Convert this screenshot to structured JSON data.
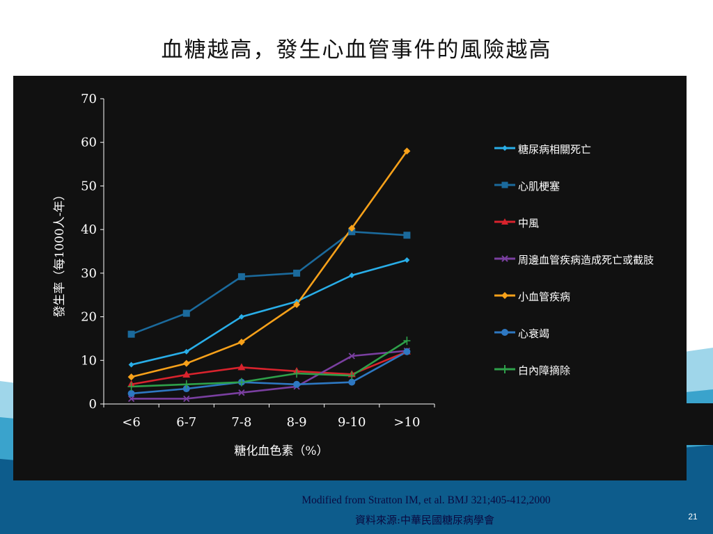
{
  "slide": {
    "title": "血糖越高，發生心血管事件的風險越高",
    "citation": "Modified from Stratton IM, et al. BMJ  321;405-412,2000",
    "source": "資料來源:中華民國糖尿病學會",
    "page_number": "21"
  },
  "colors": {
    "wave_light": "#9fd6ea",
    "wave_mid": "#3aa3cc",
    "wave_dark": "#0d5c8c",
    "chart_bg": "#111111"
  },
  "chart_data": {
    "type": "line",
    "title": "",
    "xlabel": "糖化血色素（%）",
    "ylabel": "發生率（每1000人-年）",
    "categories": [
      "<6",
      "6-7",
      "7-8",
      "8-9",
      "9-10",
      ">10"
    ],
    "ylim": [
      0,
      70
    ],
    "yticks": [
      0,
      10,
      20,
      30,
      40,
      50,
      60,
      70
    ],
    "grid": false,
    "legend_position": "right",
    "series": [
      {
        "name": "糖尿病相關死亡",
        "color": "#29aee8",
        "marker": "diamond-small",
        "values": [
          9,
          12,
          20,
          23.5,
          29.5,
          33
        ]
      },
      {
        "name": "心肌梗塞",
        "color": "#1b6a9c",
        "marker": "square",
        "values": [
          16,
          20.8,
          29.2,
          30,
          39.5,
          38.7
        ]
      },
      {
        "name": "中風",
        "color": "#d9232d",
        "marker": "triangle",
        "values": [
          4.5,
          6.7,
          8.4,
          7.5,
          6.8,
          12
        ]
      },
      {
        "name": "周邊血管疾病造成死亡或截肢",
        "color": "#7a3fa0",
        "marker": "x",
        "values": [
          1.2,
          1.2,
          2.6,
          4,
          11,
          12.2
        ]
      },
      {
        "name": "小血管疾病",
        "color": "#f7a11a",
        "marker": "diamond",
        "values": [
          6.2,
          9.3,
          14.2,
          22.8,
          40.3,
          58
        ]
      },
      {
        "name": "心衰竭",
        "color": "#2e78c2",
        "marker": "circle",
        "values": [
          2.4,
          3.5,
          5,
          4.5,
          5,
          12
        ]
      },
      {
        "name": "白內障摘除",
        "color": "#2ea14a",
        "marker": "plus",
        "values": [
          4,
          4.5,
          5,
          7,
          6.5,
          14.5
        ]
      }
    ]
  }
}
